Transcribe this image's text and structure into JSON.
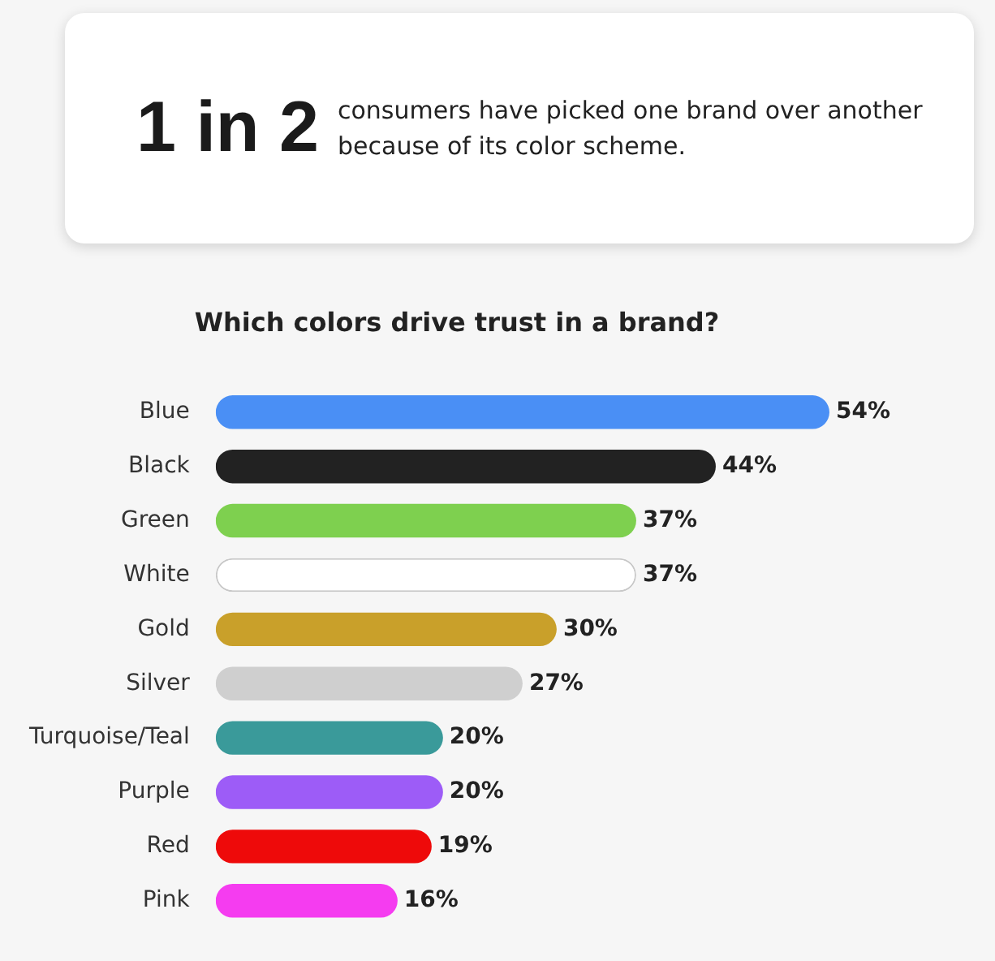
{
  "chart_data": [
    {
      "type": "other",
      "title": "1 in 2",
      "annotations": [
        "consumers have picked one brand over another because of its color scheme."
      ]
    },
    {
      "type": "bar",
      "orientation": "horizontal",
      "title": "Which colors drive trust in a brand?",
      "categories": [
        "Blue",
        "Black",
        "Green",
        "White",
        "Gold",
        "Silver",
        "Turquoise/Teal",
        "Purple",
        "Red",
        "Pink"
      ],
      "values": [
        54,
        44,
        37,
        37,
        30,
        27,
        20,
        20,
        19,
        16
      ],
      "colors": [
        "#4a8ff5",
        "#222222",
        "#7ed04f",
        "#ffffff",
        "#c9a02a",
        "#cfcfcf",
        "#3a9a9a",
        "#9d5cf7",
        "#ee0a0a",
        "#f53cf0"
      ],
      "value_labels": [
        "54%",
        "44%",
        "37%",
        "37%",
        "30%",
        "27%",
        "20%",
        "20%",
        "19%",
        "16%"
      ],
      "grid": false,
      "legend": false,
      "tick_labels": "y"
    }
  ]
}
